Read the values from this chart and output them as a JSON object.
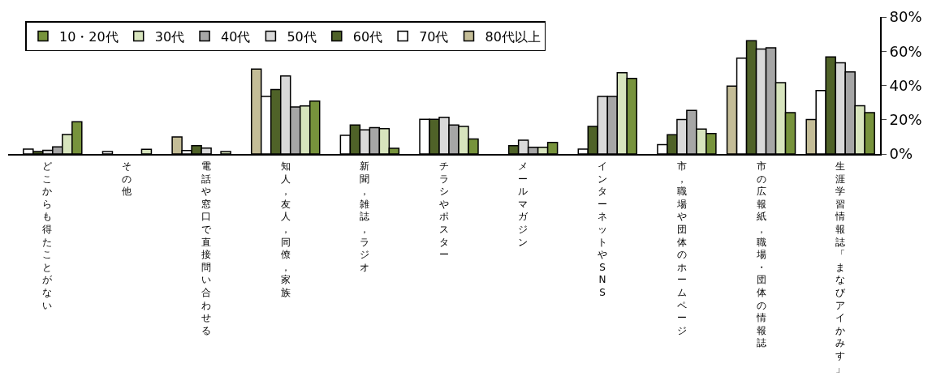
{
  "chart_data": {
    "type": "bar",
    "categories": [
      "どこからも得たことがない",
      "その他",
      "電話や窓口で直接問い合わせる",
      "知人，友人，同僚，家族",
      "新聞，雑誌，ラジオ",
      "チラシやポスター",
      "メールマガジン",
      "インターネットやSNS",
      "市，職場や団体のホームページ",
      "市の広報紙，職場・団体の情報誌",
      "生涯学習情報誌「まなびアイかみす」"
    ],
    "series": [
      {
        "name": "10・20代",
        "color": "#77933c",
        "values": [
          18.8,
          null,
          null,
          30.9,
          3.3,
          8.8,
          6.8,
          44.1,
          12.0,
          24.2,
          24.2
        ]
      },
      {
        "name": "30代",
        "color": "#d7e4bd",
        "values": [
          11.4,
          2.7,
          1.4,
          28.1,
          14.8,
          16.1,
          3.9,
          47.4,
          14.6,
          41.7,
          28.2
        ]
      },
      {
        "name": "40代",
        "color": "#a6a6a6",
        "values": [
          4.1,
          null,
          null,
          27.4,
          15.4,
          16.9,
          3.9,
          33.6,
          25.5,
          62.0,
          47.9
        ]
      },
      {
        "name": "50代",
        "color": "#d9d9d9",
        "values": [
          2.1,
          null,
          3.4,
          45.6,
          14.1,
          21.4,
          8.1,
          33.6,
          20.1,
          61.3,
          53.3
        ]
      },
      {
        "name": "60代",
        "color": "#4f6228",
        "values": [
          1.4,
          null,
          4.8,
          37.6,
          16.9,
          20.2,
          4.8,
          16.1,
          11.3,
          66.2,
          56.7
        ]
      },
      {
        "name": "70代",
        "color": "#ffffff",
        "values": [
          2.8,
          1.4,
          2.0,
          33.6,
          10.9,
          20.2,
          null,
          2.8,
          5.4,
          56.0,
          37.1
        ]
      },
      {
        "name": "80代以上",
        "color": "#c4bd97",
        "values": [
          null,
          null,
          10.0,
          49.6,
          null,
          null,
          null,
          null,
          null,
          39.7,
          20.1
        ]
      }
    ],
    "ylim": [
      0,
      80
    ],
    "yticks": [
      {
        "value": 0,
        "label": "0%"
      },
      {
        "value": 20,
        "label": "20%"
      },
      {
        "value": 40,
        "label": "40%"
      },
      {
        "value": 60,
        "label": "60%"
      },
      {
        "value": 80,
        "label": "80%"
      }
    ],
    "legend": "top left"
  }
}
